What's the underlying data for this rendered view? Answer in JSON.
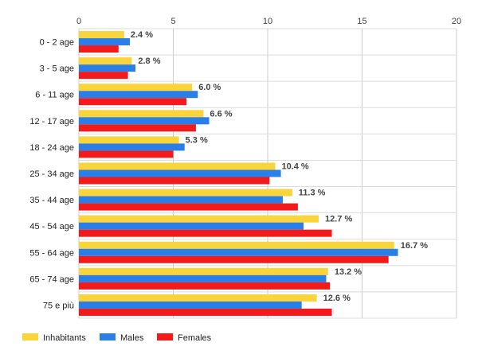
{
  "chart_data": {
    "type": "bar",
    "orientation": "horizontal",
    "categories": [
      "0 - 2 age",
      "3 - 5 age",
      "6 - 11 age",
      "12 - 17 age",
      "18 - 24 age",
      "25 - 34 age",
      "35 - 44 age",
      "45 - 54 age",
      "55 - 64 age",
      "65 - 74 age",
      "75 e più"
    ],
    "series": [
      {
        "name": "Inhabitants",
        "color": "#f9d43a",
        "values": [
          2.4,
          2.8,
          6.0,
          6.6,
          5.3,
          10.4,
          11.3,
          12.7,
          16.7,
          13.2,
          12.6
        ]
      },
      {
        "name": "Males",
        "color": "#2a7ee8",
        "values": [
          2.7,
          3.0,
          6.3,
          6.9,
          5.6,
          10.7,
          10.8,
          11.9,
          16.9,
          13.1,
          11.8
        ]
      },
      {
        "name": "Females",
        "color": "#f21a1a",
        "values": [
          2.1,
          2.6,
          5.7,
          6.2,
          5.0,
          10.1,
          11.6,
          13.4,
          16.4,
          13.3,
          13.4
        ]
      }
    ],
    "data_labels": [
      "2.4 %",
      "2.8 %",
      "6.0 %",
      "6.6 %",
      "5.3 %",
      "10.4 %",
      "11.3 %",
      "12.7 %",
      "16.7 %",
      "13.2 %",
      "12.6 %"
    ],
    "x_ticks": [
      "0",
      "5",
      "10",
      "15",
      "20"
    ],
    "xlim": [
      0,
      20
    ],
    "grid": true,
    "legend_position": "bottom-left"
  }
}
